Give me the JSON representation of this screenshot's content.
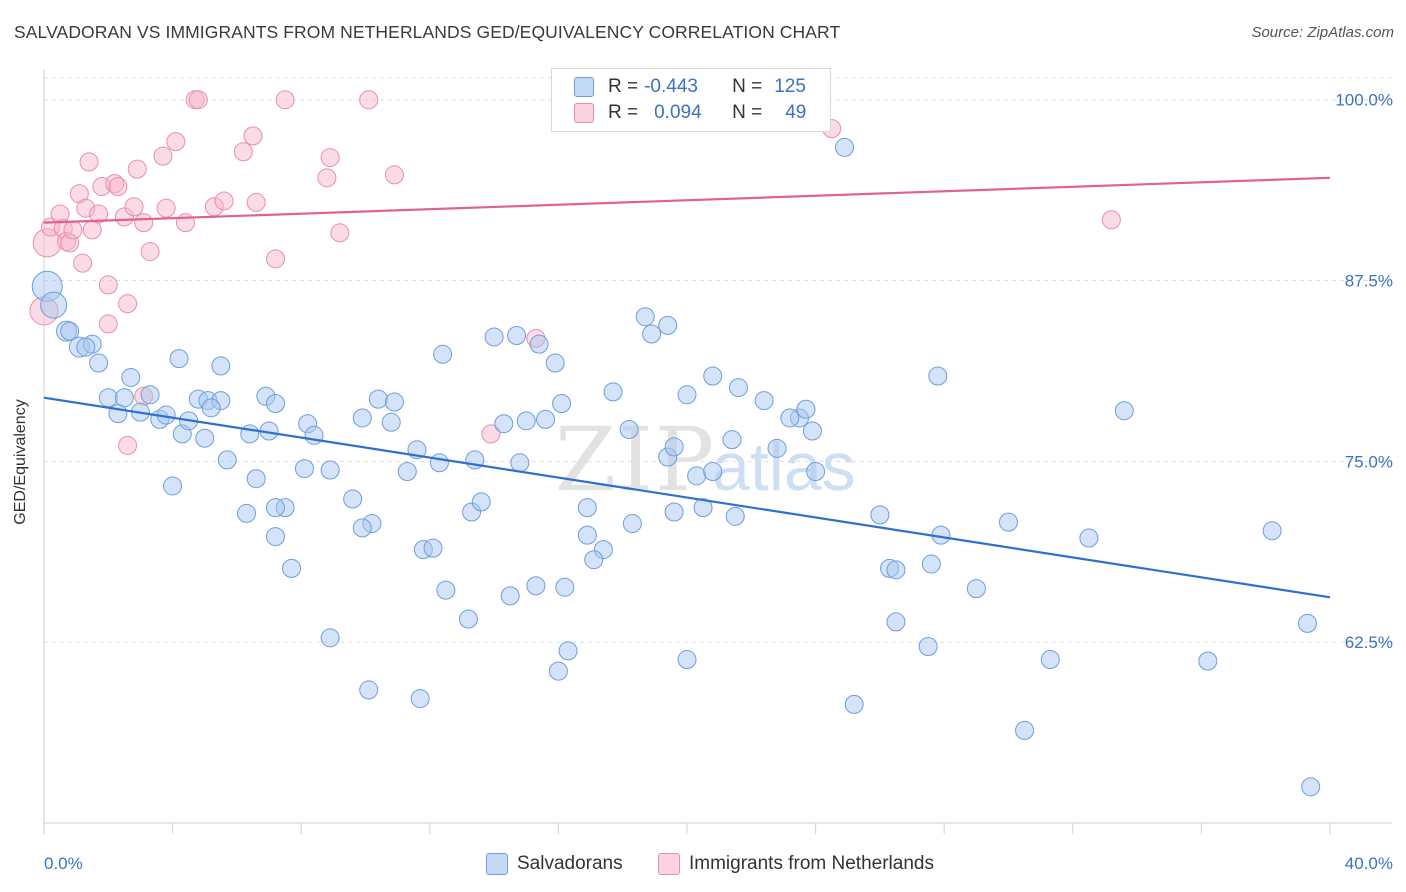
{
  "title": "SALVADORAN VS IMMIGRANTS FROM NETHERLANDS GED/EQUIVALENCY CORRELATION CHART",
  "source": "Source: ZipAtlas.com",
  "watermark": {
    "zip": "ZIP",
    "atlas": "atlas"
  },
  "legend_top": {
    "rows": [
      {
        "r_label": "R =",
        "r_value": "-0.443",
        "n_label": "N =",
        "n_value": "125",
        "color": "#a9c8f0"
      },
      {
        "r_label": "R =",
        "r_value": "0.094",
        "n_label": "N =",
        "n_value": "49",
        "color": "#f7b8cb"
      }
    ]
  },
  "bottom_legend": {
    "items": [
      {
        "label": "Salvadorans",
        "color": "#a9c8f0"
      },
      {
        "label": "Immigrants from Netherlands",
        "color": "#f7b8cb"
      }
    ]
  },
  "colors": {
    "blue_fill": "#a9c8f0",
    "blue_stroke": "#6b9fdc",
    "blue_line": "#2e6fcf",
    "pink_fill": "#f7b8cb",
    "pink_stroke": "#e890ab",
    "pink_line": "#e0628d",
    "tick_label": "#3b72c4",
    "grid": "#dedede"
  },
  "chart_data": {
    "type": "scatter",
    "title": "SALVADORAN VS IMMIGRANTS FROM NETHERLANDS GED/EQUIVALENCY CORRELATION CHART",
    "xlabel": "",
    "ylabel": "GED/Equivalency",
    "xlim": [
      0,
      40
    ],
    "ylim": [
      50,
      101.5
    ],
    "x_tick_labels": [
      "0.0%",
      "40.0%"
    ],
    "y_ticks": [
      62.5,
      75.0,
      87.5,
      100.0
    ],
    "y_tick_labels": [
      "62.5%",
      "75.0%",
      "87.5%",
      "100.0%"
    ],
    "grid": true,
    "legend_position": "bottom",
    "series": [
      {
        "name": "Salvadorans",
        "trend": {
          "x": [
            0,
            40
          ],
          "y": [
            79.4,
            65.6
          ]
        },
        "points": [
          [
            0.1,
            87.1,
            15
          ],
          [
            0.3,
            85.8,
            13
          ],
          [
            0.7,
            84.0,
            10
          ],
          [
            1.1,
            82.9,
            10
          ],
          [
            1.5,
            83.1,
            9
          ],
          [
            0.8,
            84.0,
            9
          ],
          [
            1.7,
            81.8,
            9
          ],
          [
            1.3,
            82.9,
            9
          ],
          [
            2.7,
            80.8,
            9
          ],
          [
            2.0,
            79.4,
            9
          ],
          [
            2.5,
            79.4,
            9
          ],
          [
            3.3,
            79.6,
            9
          ],
          [
            2.3,
            78.3,
            9
          ],
          [
            3.6,
            77.9,
            9
          ],
          [
            3.0,
            78.4,
            9
          ],
          [
            3.8,
            78.2,
            9
          ],
          [
            4.3,
            76.9,
            9
          ],
          [
            4.8,
            79.3,
            9
          ],
          [
            5.1,
            79.2,
            9
          ],
          [
            5.5,
            79.2,
            9
          ],
          [
            5.2,
            78.7,
            9
          ],
          [
            4.5,
            77.8,
            9
          ],
          [
            5.0,
            76.6,
            9
          ],
          [
            6.4,
            76.9,
            9
          ],
          [
            7.0,
            77.1,
            9
          ],
          [
            6.9,
            79.5,
            9
          ],
          [
            5.7,
            75.1,
            9
          ],
          [
            7.2,
            79.0,
            9
          ],
          [
            5.5,
            81.6,
            9
          ],
          [
            4.2,
            82.1,
            9
          ],
          [
            8.2,
            77.6,
            9
          ],
          [
            8.4,
            76.8,
            9
          ],
          [
            9.9,
            78.0,
            9
          ],
          [
            10.4,
            79.3,
            9
          ],
          [
            10.8,
            77.7,
            9
          ],
          [
            10.9,
            79.1,
            9
          ],
          [
            11.6,
            75.8,
            9
          ],
          [
            12.3,
            74.9,
            9
          ],
          [
            13.4,
            75.1,
            9
          ],
          [
            14.3,
            77.6,
            9
          ],
          [
            14.8,
            74.9,
            9
          ],
          [
            15.0,
            77.8,
            9
          ],
          [
            15.6,
            77.9,
            9
          ],
          [
            11.3,
            74.3,
            9
          ],
          [
            8.9,
            74.4,
            9
          ],
          [
            8.1,
            74.5,
            9
          ],
          [
            9.6,
            72.4,
            9
          ],
          [
            10.2,
            70.7,
            9
          ],
          [
            9.9,
            70.4,
            9
          ],
          [
            11.8,
            68.9,
            9
          ],
          [
            12.1,
            69.0,
            9
          ],
          [
            13.3,
            71.5,
            9
          ],
          [
            13.6,
            72.2,
            9
          ],
          [
            7.5,
            71.8,
            9
          ],
          [
            7.2,
            71.8,
            9
          ],
          [
            7.2,
            69.8,
            9
          ],
          [
            7.7,
            67.6,
            9
          ],
          [
            6.6,
            73.8,
            9
          ],
          [
            6.3,
            71.4,
            9
          ],
          [
            4.0,
            73.3,
            9
          ],
          [
            12.4,
            82.4,
            9
          ],
          [
            14.0,
            83.6,
            9
          ],
          [
            14.7,
            83.7,
            9
          ],
          [
            15.4,
            83.1,
            9
          ],
          [
            15.9,
            81.8,
            9
          ],
          [
            16.1,
            79.0,
            9
          ],
          [
            17.7,
            79.8,
            9
          ],
          [
            18.2,
            77.2,
            9
          ],
          [
            18.7,
            85.0,
            9
          ],
          [
            18.9,
            83.8,
            9
          ],
          [
            19.4,
            84.4,
            9
          ],
          [
            20.0,
            79.6,
            9
          ],
          [
            20.8,
            80.9,
            9
          ],
          [
            21.6,
            80.1,
            9
          ],
          [
            22.4,
            79.2,
            9
          ],
          [
            22.8,
            75.9,
            9
          ],
          [
            21.4,
            76.5,
            9
          ],
          [
            19.4,
            75.3,
            9
          ],
          [
            19.6,
            76.0,
            9
          ],
          [
            20.3,
            74.0,
            9
          ],
          [
            20.8,
            74.3,
            9
          ],
          [
            23.5,
            78.0,
            9
          ],
          [
            23.7,
            78.6,
            9
          ],
          [
            23.2,
            78.0,
            9
          ],
          [
            23.9,
            77.1,
            9
          ],
          [
            24.0,
            74.3,
            9
          ],
          [
            16.9,
            71.8,
            9
          ],
          [
            18.3,
            70.7,
            9
          ],
          [
            19.6,
            71.5,
            9
          ],
          [
            20.5,
            71.8,
            9
          ],
          [
            21.5,
            71.2,
            9
          ],
          [
            16.9,
            69.9,
            9
          ],
          [
            17.4,
            68.9,
            9
          ],
          [
            17.1,
            68.2,
            9
          ],
          [
            12.5,
            66.1,
            9
          ],
          [
            13.2,
            64.1,
            9
          ],
          [
            14.5,
            65.7,
            9
          ],
          [
            15.3,
            66.4,
            9
          ],
          [
            16.2,
            66.3,
            9
          ],
          [
            16.3,
            61.9,
            9
          ],
          [
            16.0,
            60.5,
            9
          ],
          [
            20.0,
            61.3,
            9
          ],
          [
            8.9,
            62.8,
            9
          ],
          [
            10.1,
            59.2,
            9
          ],
          [
            11.7,
            58.6,
            9
          ],
          [
            24.9,
            96.7,
            9
          ],
          [
            27.8,
            80.9,
            9
          ],
          [
            26.0,
            71.3,
            9
          ],
          [
            27.9,
            69.9,
            9
          ],
          [
            27.6,
            67.9,
            9
          ],
          [
            26.3,
            67.6,
            9
          ],
          [
            26.5,
            67.5,
            9
          ],
          [
            29.0,
            66.2,
            9
          ],
          [
            26.5,
            63.9,
            9
          ],
          [
            27.5,
            62.2,
            9
          ],
          [
            25.2,
            58.2,
            9
          ],
          [
            30.0,
            70.8,
            9
          ],
          [
            32.5,
            69.7,
            9
          ],
          [
            33.6,
            78.5,
            9
          ],
          [
            31.3,
            61.3,
            9
          ],
          [
            30.5,
            56.4,
            9
          ],
          [
            36.2,
            61.2,
            9
          ],
          [
            38.2,
            70.2,
            9
          ],
          [
            39.3,
            63.8,
            9
          ],
          [
            39.4,
            52.5,
            9
          ]
        ]
      },
      {
        "name": "Immigrants from Netherlands",
        "trend": {
          "x": [
            0,
            40
          ],
          "y": [
            91.5,
            94.6
          ]
        },
        "points": [
          [
            0.1,
            90.1,
            14
          ],
          [
            0.0,
            85.4,
            14
          ],
          [
            0.2,
            91.2,
            9
          ],
          [
            0.5,
            92.1,
            9
          ],
          [
            0.6,
            91.1,
            9
          ],
          [
            0.7,
            90.2,
            9
          ],
          [
            0.8,
            90.1,
            9
          ],
          [
            0.9,
            91.0,
            9
          ],
          [
            1.1,
            93.5,
            9
          ],
          [
            1.2,
            88.7,
            9
          ],
          [
            1.3,
            92.5,
            9
          ],
          [
            1.5,
            91.0,
            9
          ],
          [
            1.4,
            95.7,
            9
          ],
          [
            1.7,
            92.1,
            9
          ],
          [
            1.8,
            94.0,
            9
          ],
          [
            2.0,
            87.2,
            9
          ],
          [
            2.0,
            84.5,
            9
          ],
          [
            2.2,
            94.2,
            9
          ],
          [
            2.3,
            94.0,
            9
          ],
          [
            2.5,
            91.9,
            9
          ],
          [
            2.6,
            85.9,
            9
          ],
          [
            2.8,
            92.6,
            9
          ],
          [
            2.9,
            95.2,
            9
          ],
          [
            3.1,
            91.5,
            9
          ],
          [
            3.3,
            89.5,
            9
          ],
          [
            3.7,
            96.1,
            9
          ],
          [
            3.8,
            92.5,
            9
          ],
          [
            4.1,
            97.1,
            9
          ],
          [
            4.4,
            91.5,
            9
          ],
          [
            4.7,
            100.0,
            9
          ],
          [
            4.8,
            100.0,
            9
          ],
          [
            5.3,
            92.6,
            9
          ],
          [
            5.6,
            93.0,
            9
          ],
          [
            6.2,
            96.4,
            9
          ],
          [
            6.5,
            97.5,
            9
          ],
          [
            6.6,
            92.9,
            9
          ],
          [
            7.2,
            89.0,
            9
          ],
          [
            7.5,
            100.0,
            9
          ],
          [
            8.8,
            94.6,
            9
          ],
          [
            8.9,
            96.0,
            9
          ],
          [
            9.2,
            90.8,
            9
          ],
          [
            10.1,
            100.0,
            9
          ],
          [
            10.9,
            94.8,
            9
          ],
          [
            2.6,
            76.1,
            9
          ],
          [
            3.1,
            79.5,
            9
          ],
          [
            13.9,
            76.9,
            9
          ],
          [
            15.3,
            83.5,
            9
          ],
          [
            24.5,
            98.0,
            9
          ],
          [
            33.2,
            91.7,
            9
          ]
        ]
      }
    ]
  }
}
